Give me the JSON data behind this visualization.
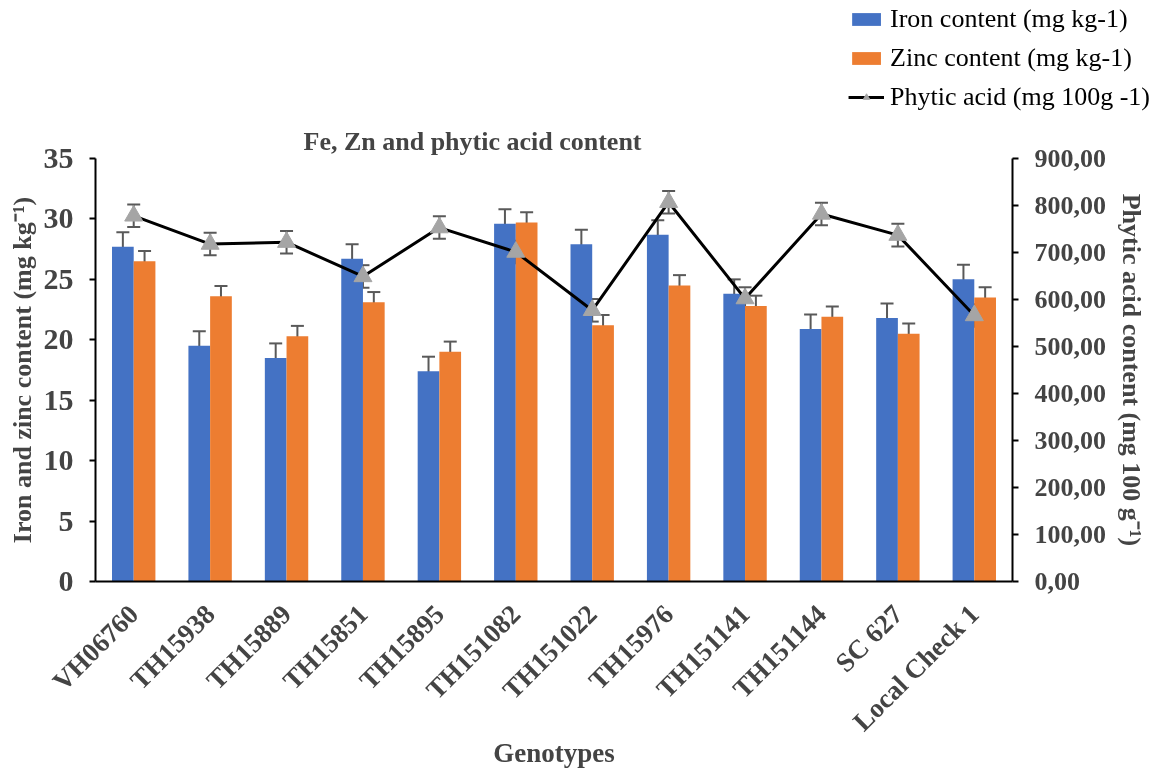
{
  "chart_data": {
    "type": "bar",
    "title": "Fe, Zn and phytic acid content",
    "xlabel": "Genotypes",
    "ylabel": "Iron and zinc content (mg kg⁻¹)",
    "y2label": "Phytic acid content (mg 100 g⁻¹)",
    "categories": [
      "VH06760",
      "TH15938",
      "TH15889",
      "TH15851",
      "TH15895",
      "TH151082",
      "TH151022",
      "TH15976",
      "TH151141",
      "TH151144",
      "SC 627",
      "Local Check 1"
    ],
    "series": [
      {
        "name": "Iron content (mg kg-1)",
        "color": "#4472c4",
        "values": [
          27.7,
          19.5,
          18.5,
          26.7,
          17.4,
          29.6,
          27.9,
          28.7,
          23.8,
          20.9,
          21.8,
          25.0
        ],
        "errors": [
          1.2,
          1.2,
          1.2,
          1.2,
          1.2,
          1.2,
          1.2,
          1.2,
          1.2,
          1.2,
          1.2,
          1.2
        ]
      },
      {
        "name": "Zinc content (mg kg-1)",
        "color": "#ed7d31",
        "values": [
          26.5,
          23.6,
          20.3,
          23.1,
          19.0,
          29.7,
          21.2,
          24.5,
          22.8,
          21.9,
          20.5,
          23.5
        ],
        "errors": [
          0.85,
          0.85,
          0.85,
          0.85,
          0.85,
          0.85,
          0.85,
          0.85,
          0.85,
          0.85,
          0.85,
          0.85
        ]
      },
      {
        "name": "Phytic acid (mg 100g -1)",
        "type": "line",
        "axis": "y2",
        "color": "#000000",
        "colors": [
          "#a5a5a5",
          "#a5a5a5",
          "#a5a5a5",
          "#a5a5a5",
          "#a5a5a5",
          "#a5a5a5",
          "#a5a5a5",
          "#a5a5a5",
          "#a5a5a5",
          "#a5a5a5",
          "#a5a5a5",
          "#a5a5a5"
        ],
        "values": [
          778,
          718,
          722,
          649,
          753,
          701,
          577,
          807,
          602,
          782,
          737,
          566
        ],
        "errors": [
          24,
          24,
          24,
          24,
          24,
          24,
          24,
          24,
          24,
          24,
          24,
          24
        ]
      }
    ],
    "ylim": [
      0,
      35
    ],
    "yticks": [
      0,
      5,
      10,
      15,
      20,
      25,
      30,
      35
    ],
    "y2lim": [
      0,
      900
    ],
    "y2ticks": [
      {
        "value": 0,
        "label": "0,00"
      },
      {
        "value": 100,
        "label": "100,00"
      },
      {
        "value": 200,
        "label": "200,00"
      },
      {
        "value": 300,
        "label": "300,00"
      },
      {
        "value": 400,
        "label": "400,00"
      },
      {
        "value": 500,
        "label": "500,00"
      },
      {
        "value": 600,
        "label": "600,00"
      },
      {
        "value": 700,
        "label": "700,00"
      },
      {
        "value": 800,
        "label": "800,00"
      },
      {
        "value": 900,
        "label": "900,00"
      }
    ],
    "marker": "triangle",
    "line_style": "solid",
    "grid": false,
    "legend": "top right"
  }
}
